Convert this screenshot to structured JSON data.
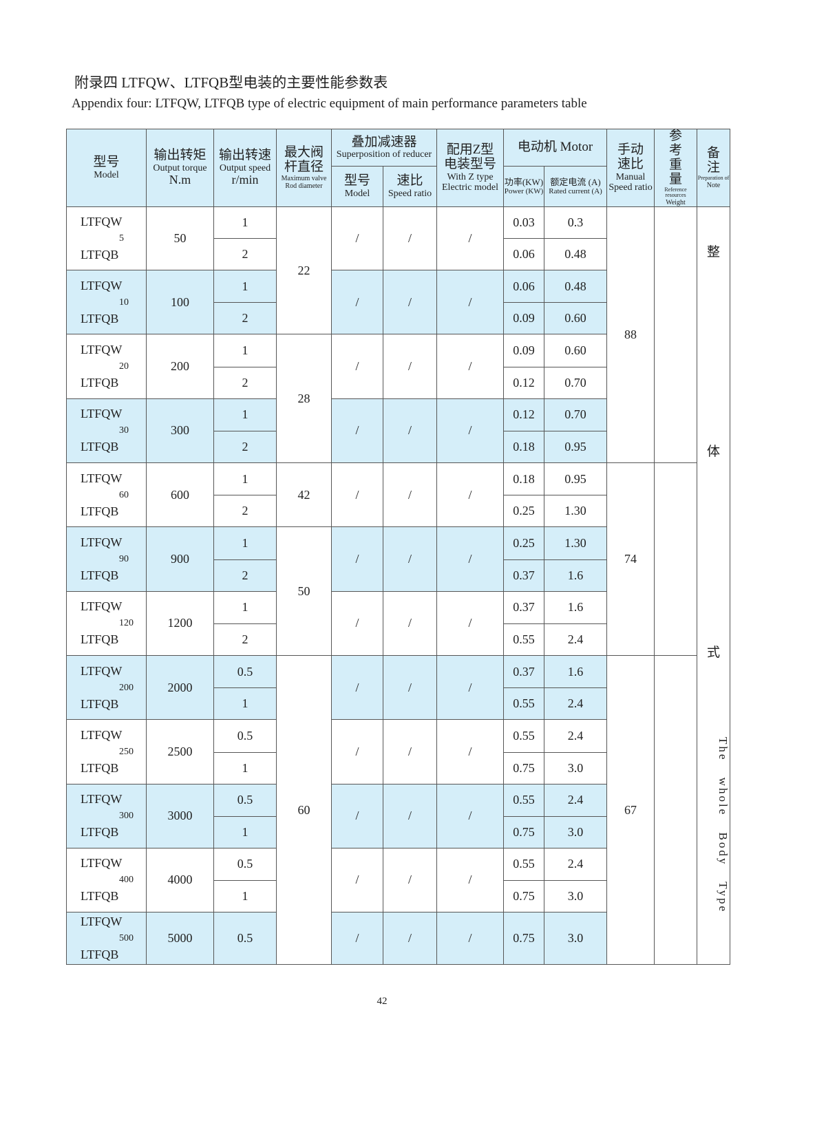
{
  "title_cn": "附录四 LTFQW、LTFQB型电装的主要性能参数表",
  "title_en": "Appendix four: LTFQW, LTFQB type of electric equipment of main performance parameters table",
  "header": {
    "model_cn": "型号",
    "model_en": "Model",
    "torque_cn": "输出转矩",
    "torque_en": "Output torque",
    "torque_unit": "N.m",
    "speed_cn": "输出转速",
    "speed_en": "Output speed",
    "speed_unit": "r/min",
    "dia_cn": "最大阀杆直径",
    "dia_en1": "Maximum valve",
    "dia_en2": "Rod diameter",
    "red_cn": "叠加减速器",
    "red_en": "Superposition of reducer",
    "red_model_cn": "型号",
    "red_model_en": "Model",
    "red_ratio_cn": "速比",
    "red_ratio_en": "Speed ratio",
    "z_cn": "配用Z型电装型号",
    "z_en1": "With Z type",
    "z_en2": "Electric model",
    "motor": "电动机 Motor",
    "power": "功率(KW)",
    "power_en": "Power (KW)",
    "current": "额定电流 (A)",
    "current_en": "Rated current (A)",
    "manual_cn": "手动速比",
    "manual_en1": "Manual",
    "manual_en2": "Speed ratio",
    "weight_cn": "参考重量",
    "weight_en1": "Reference resources",
    "weight_en2": "Weight",
    "note_cn": "备注",
    "note_en1": "Preparation of",
    "note_en2": "Note"
  },
  "rows": [
    {
      "size": "5",
      "torque": "50",
      "speeds": [
        "1",
        "2"
      ],
      "power": [
        "0.03",
        "0.06"
      ],
      "current": [
        "0.3",
        "0.48"
      ]
    },
    {
      "size": "10",
      "torque": "100",
      "speeds": [
        "1",
        "2"
      ],
      "power": [
        "0.06",
        "0.09"
      ],
      "current": [
        "0.48",
        "0.60"
      ]
    },
    {
      "size": "20",
      "torque": "200",
      "speeds": [
        "1",
        "2"
      ],
      "power": [
        "0.09",
        "0.12"
      ],
      "current": [
        "0.60",
        "0.70"
      ]
    },
    {
      "size": "30",
      "torque": "300",
      "speeds": [
        "1",
        "2"
      ],
      "power": [
        "0.12",
        "0.18"
      ],
      "current": [
        "0.70",
        "0.95"
      ]
    },
    {
      "size": "60",
      "torque": "600",
      "speeds": [
        "1",
        "2"
      ],
      "power": [
        "0.18",
        "0.25"
      ],
      "current": [
        "0.95",
        "1.30"
      ]
    },
    {
      "size": "90",
      "torque": "900",
      "speeds": [
        "1",
        "2"
      ],
      "power": [
        "0.25",
        "0.37"
      ],
      "current": [
        "1.30",
        "1.6"
      ]
    },
    {
      "size": "120",
      "torque": "1200",
      "speeds": [
        "1",
        "2"
      ],
      "power": [
        "0.37",
        "0.55"
      ],
      "current": [
        "1.6",
        "2.4"
      ]
    },
    {
      "size": "200",
      "torque": "2000",
      "speeds": [
        "0.5",
        "1"
      ],
      "power": [
        "0.37",
        "0.55"
      ],
      "current": [
        "1.6",
        "2.4"
      ]
    },
    {
      "size": "250",
      "torque": "2500",
      "speeds": [
        "0.5",
        "1"
      ],
      "power": [
        "0.55",
        "0.75"
      ],
      "current": [
        "2.4",
        "3.0"
      ]
    },
    {
      "size": "300",
      "torque": "3000",
      "speeds": [
        "0.5",
        "1"
      ],
      "power": [
        "0.55",
        "0.75"
      ],
      "current": [
        "2.4",
        "3.0"
      ]
    },
    {
      "size": "400",
      "torque": "4000",
      "speeds": [
        "0.5",
        "1"
      ],
      "power": [
        "0.55",
        "0.75"
      ],
      "current": [
        "2.4",
        "3.0"
      ]
    },
    {
      "size": "500",
      "torque": "5000",
      "speeds": [
        "0.5"
      ],
      "power": [
        "0.75"
      ],
      "current": [
        "3.0"
      ]
    }
  ],
  "model_w": "LTFQW",
  "model_b": "LTFQB",
  "slash": "/",
  "diameter_groups": [
    {
      "value": "22",
      "count": 2
    },
    {
      "value": "28",
      "count": 2
    },
    {
      "value": "42",
      "count": 1
    },
    {
      "value": "50",
      "count": 2
    },
    {
      "value": "60",
      "count": 5
    }
  ],
  "manual_groups": [
    {
      "value": "88",
      "count": 4
    },
    {
      "value": "74",
      "count": 3
    },
    {
      "value": "67",
      "count": 5
    }
  ],
  "note_chars": [
    "整",
    "体",
    "式"
  ],
  "note_en": "The whole Body Type",
  "page_number": "42"
}
